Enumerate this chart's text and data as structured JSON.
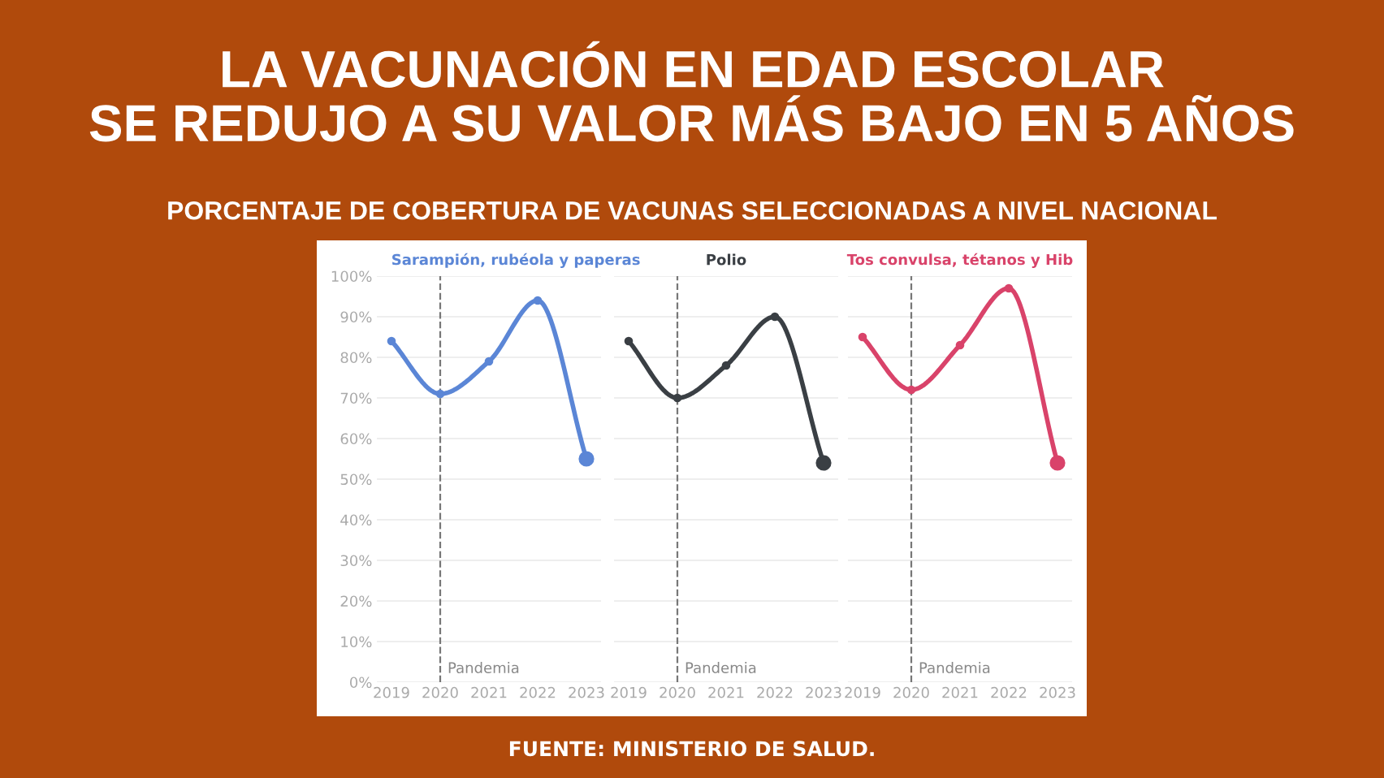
{
  "chart_data": [
    {
      "type": "line",
      "title": "LA VACUNACIÓN EN EDAD ESCOLAR\nSE REDUJO A SU VALOR MÁS BAJO EN 5 AÑOS",
      "subtitle": "PORCENTAJE DE COBERTURA DE VACUNAS SELECCIONADAS A NIVEL NACIONAL",
      "annotations": [
        "FUENTE: MINISTERIO DE SALUD."
      ],
      "x": [
        2019,
        2020,
        2021,
        2022,
        2023
      ],
      "series": [
        {
          "name": "Sarampión, rubéola y paperas",
          "color": "#5b86d6",
          "values": [
            84,
            71,
            79,
            94,
            55
          ]
        }
      ],
      "xlim": [
        2018.7,
        2023.3
      ],
      "xticks": [
        2019,
        2020,
        2021,
        2022,
        2023
      ],
      "ylim": [
        0,
        100
      ],
      "yticks": [
        {
          "value": 0,
          "label": "0%"
        },
        {
          "value": 10,
          "label": "10%"
        },
        {
          "value": 20,
          "label": "20%"
        },
        {
          "value": 30,
          "label": "30%"
        },
        {
          "value": 40,
          "label": "40%"
        },
        {
          "value": 50,
          "label": "50%"
        },
        {
          "value": 60,
          "label": "60%"
        },
        {
          "value": 70,
          "label": "70%"
        },
        {
          "value": 80,
          "label": "80%"
        },
        {
          "value": 90,
          "label": "90%"
        },
        {
          "value": 100,
          "label": "100%"
        }
      ],
      "grid": "y",
      "marker": "circle",
      "line_style": "solid",
      "ref_lines": [
        {
          "axis": "x",
          "value": 2020,
          "label": "Pandemia",
          "color": "#777777",
          "line_style": "dashed"
        }
      ]
    },
    {
      "type": "line",
      "x": [
        2019,
        2020,
        2021,
        2022,
        2023
      ],
      "series": [
        {
          "name": "Polio",
          "color": "#3a3f44",
          "values": [
            84,
            70,
            78,
            90,
            54
          ]
        }
      ],
      "xlim": [
        2018.7,
        2023.3
      ],
      "xticks": [
        2019,
        2020,
        2021,
        2022,
        2023
      ],
      "ylim": [
        0,
        100
      ],
      "yticks": [
        0,
        10,
        20,
        30,
        40,
        50,
        60,
        70,
        80,
        90,
        100
      ],
      "tick_labels": "x",
      "grid": "y",
      "marker": "circle",
      "line_style": "solid",
      "ref_lines": [
        {
          "axis": "x",
          "value": 2020,
          "label": "Pandemia",
          "color": "#777777",
          "line_style": "dashed"
        }
      ]
    },
    {
      "type": "line",
      "x": [
        2019,
        2020,
        2021,
        2022,
        2023
      ],
      "series": [
        {
          "name": "Tos convulsa, tétanos y Hib",
          "color": "#d9436a",
          "values": [
            85,
            72,
            83,
            97,
            54
          ]
        }
      ],
      "xlim": [
        2018.7,
        2023.3
      ],
      "xticks": [
        2019,
        2020,
        2021,
        2022,
        2023
      ],
      "ylim": [
        0,
        100
      ],
      "yticks": [
        0,
        10,
        20,
        30,
        40,
        50,
        60,
        70,
        80,
        90,
        100
      ],
      "tick_labels": "x",
      "grid": "y",
      "marker": "circle",
      "line_style": "solid",
      "ref_lines": [
        {
          "axis": "x",
          "value": 2020,
          "label": "Pandemia",
          "color": "#777777",
          "line_style": "dashed"
        }
      ]
    }
  ]
}
